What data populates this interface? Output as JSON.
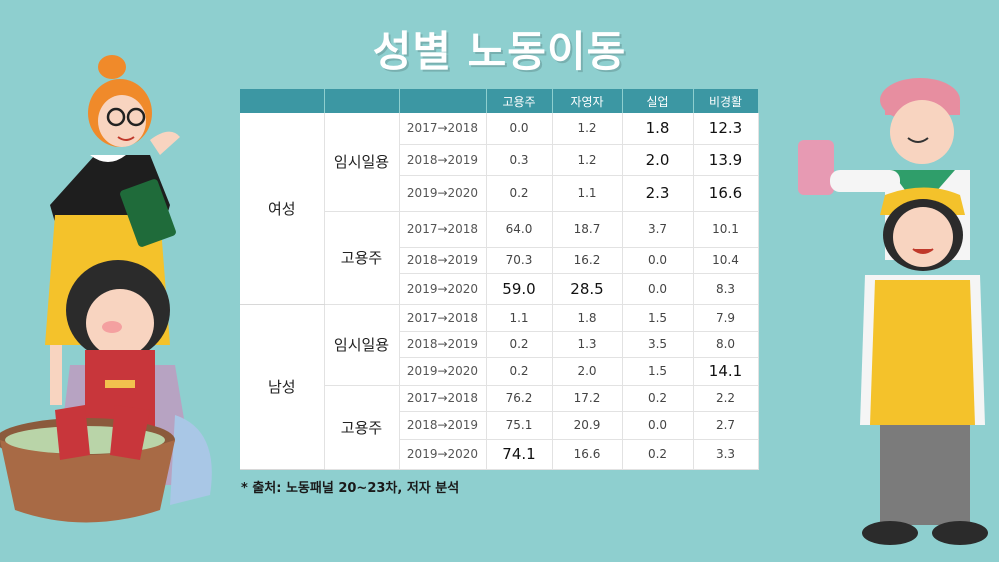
{
  "title": "성별 노동이동",
  "headers": [
    "",
    "",
    "",
    "고용주",
    "자영자",
    "실업",
    "비경활"
  ],
  "groups": {
    "female": "여성",
    "male": "남성",
    "temp": "임시일용",
    "employer": "고용주"
  },
  "rows": [
    {
      "period": "2017→2018",
      "v": [
        "0.0",
        "1.2",
        "1.8",
        "12.3"
      ]
    },
    {
      "period": "2018→2019",
      "v": [
        "0.3",
        "1.2",
        "2.0",
        "13.9"
      ]
    },
    {
      "period": "2019→2020",
      "v": [
        "0.2",
        "1.1",
        "2.3",
        "16.6"
      ]
    },
    {
      "period": "2017→2018",
      "v": [
        "64.0",
        "18.7",
        "3.7",
        "10.1"
      ]
    },
    {
      "period": "2018→2019",
      "v": [
        "70.3",
        "16.2",
        "0.0",
        "10.4"
      ]
    },
    {
      "period": "2019→2020",
      "v": [
        "59.0",
        "28.5",
        "0.0",
        "8.3"
      ]
    },
    {
      "period": "2017→2018",
      "v": [
        "1.1",
        "1.8",
        "1.5",
        "7.9"
      ]
    },
    {
      "period": "2018→2019",
      "v": [
        "0.2",
        "1.3",
        "3.5",
        "8.0"
      ]
    },
    {
      "period": "2019→2020",
      "v": [
        "0.2",
        "2.0",
        "1.5",
        "14.1"
      ]
    },
    {
      "period": "2017→2018",
      "v": [
        "76.2",
        "17.2",
        "0.2",
        "2.2"
      ]
    },
    {
      "period": "2018→2019",
      "v": [
        "75.1",
        "20.9",
        "0.0",
        "2.7"
      ]
    },
    {
      "period": "2019→2020",
      "v": [
        "74.1",
        "16.6",
        "0.2",
        "3.3"
      ]
    }
  ],
  "source": "* 출처: 노동패널 20~23차, 저자 분석",
  "colors": {
    "background": "#8ecfcf",
    "header": "#3c97a3"
  }
}
